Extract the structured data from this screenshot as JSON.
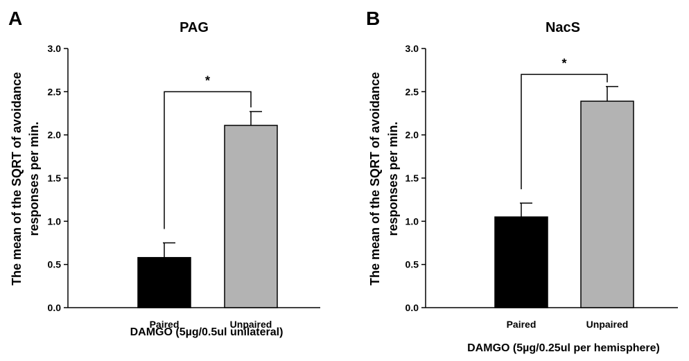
{
  "chart_data": [
    {
      "panel": "A",
      "type": "bar",
      "title": "PAG",
      "categories": [
        "Paired",
        "Unpaired"
      ],
      "values": [
        0.58,
        2.11
      ],
      "errors": [
        0.17,
        0.16
      ],
      "colors": [
        "#000000",
        "#b3b3b3"
      ],
      "xlabel": "DAMGO (5µg/0.5ul unilateral)",
      "ylabel": [
        "The mean of the SQRT of avoidance",
        "responses per min."
      ],
      "ylim": [
        0,
        3.0
      ],
      "yticks": [
        "0.0",
        "0.5",
        "1.0",
        "1.5",
        "2.0",
        "2.5",
        "3.0"
      ],
      "significance": {
        "between": [
          0,
          1
        ],
        "marker": "*",
        "level": 2.5
      },
      "grid": false
    },
    {
      "panel": "B",
      "type": "bar",
      "title": "NacS",
      "categories": [
        "Paired",
        "Unpaired"
      ],
      "values": [
        1.05,
        2.39
      ],
      "errors": [
        0.16,
        0.17
      ],
      "colors": [
        "#000000",
        "#b3b3b3"
      ],
      "xlabel": "DAMGO (5µg/0.25ul per hemisphere)",
      "ylabel": [
        "The mean of the SQRT of avoidance",
        "responses per min."
      ],
      "ylim": [
        0,
        3.0
      ],
      "yticks": [
        "0.0",
        "0.5",
        "1.0",
        "1.5",
        "2.0",
        "2.5",
        "3.0"
      ],
      "significance": {
        "between": [
          0,
          1
        ],
        "marker": "*",
        "level": 2.7
      },
      "grid": false
    }
  ]
}
